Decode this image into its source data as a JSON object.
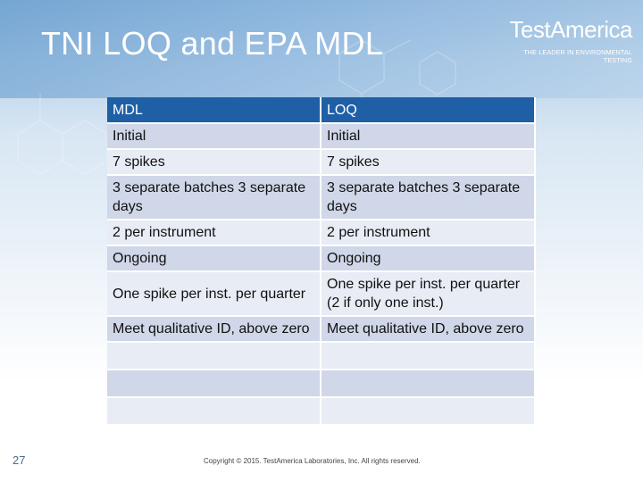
{
  "slide": {
    "title": "TNI LOQ and EPA MDL",
    "page_number": "27",
    "copyright": "Copyright © 2015. TestAmerica Laboratories, Inc. All rights reserved."
  },
  "logo": {
    "name": "TestAmerica",
    "tagline": "THE LEADER IN ENVIRONMENTAL TESTING"
  },
  "table": {
    "headers": [
      "MDL",
      "LOQ"
    ],
    "rows": [
      [
        "Initial",
        "Initial"
      ],
      [
        "7 spikes",
        "7 spikes"
      ],
      [
        "3 separate batches 3 separate days",
        "3 separate batches 3 separate days"
      ],
      [
        "2 per instrument",
        "2 per instrument"
      ],
      [
        "Ongoing",
        "Ongoing"
      ],
      [
        "One spike per inst. per quarter",
        "One spike per inst. per quarter (2 if only one inst.)"
      ],
      [
        "Meet qualitative ID, above zero",
        "Meet qualitative ID, above zero"
      ],
      [
        "",
        ""
      ],
      [
        "",
        ""
      ],
      [
        "",
        ""
      ]
    ]
  },
  "colors": {
    "header_row": "#1f5fa6",
    "row_dark": "#cfd7e8",
    "row_light": "#e8ecf4",
    "title_text": "#ffffff"
  }
}
